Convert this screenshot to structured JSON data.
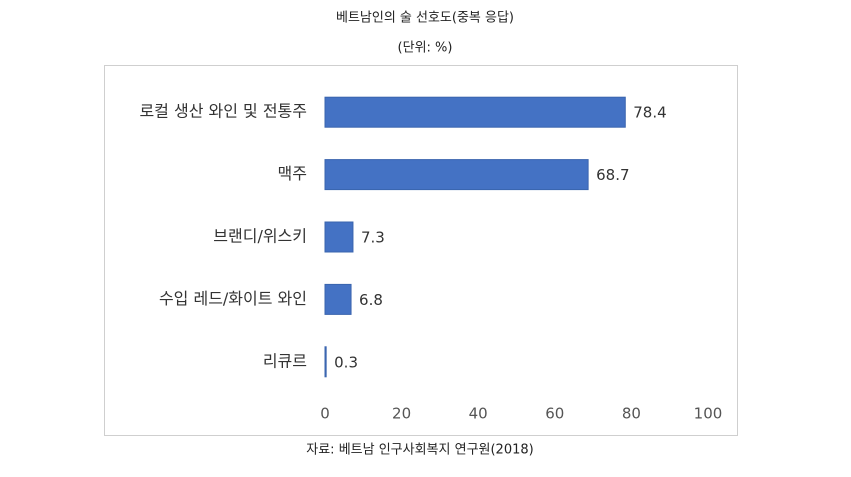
{
  "chart_data": {
    "type": "bar",
    "orientation": "horizontal",
    "title": "베트남인의 술 선호도(중복 응답)",
    "subtitle": "(단위: %)",
    "source": "자료: 베트남 인구사회복지 연구원(2018)",
    "categories": [
      "로컬 생산 와인 및 전통주",
      "맥주",
      "브랜디/위스키",
      "수입 레드/화이트 와인",
      "리큐르"
    ],
    "values": [
      78.4,
      68.7,
      7.3,
      6.8,
      0.3
    ],
    "color": "#4472c4",
    "xlim": [
      0,
      100
    ],
    "xticks": [
      0,
      20,
      40,
      60,
      80,
      100
    ],
    "grid": false
  }
}
